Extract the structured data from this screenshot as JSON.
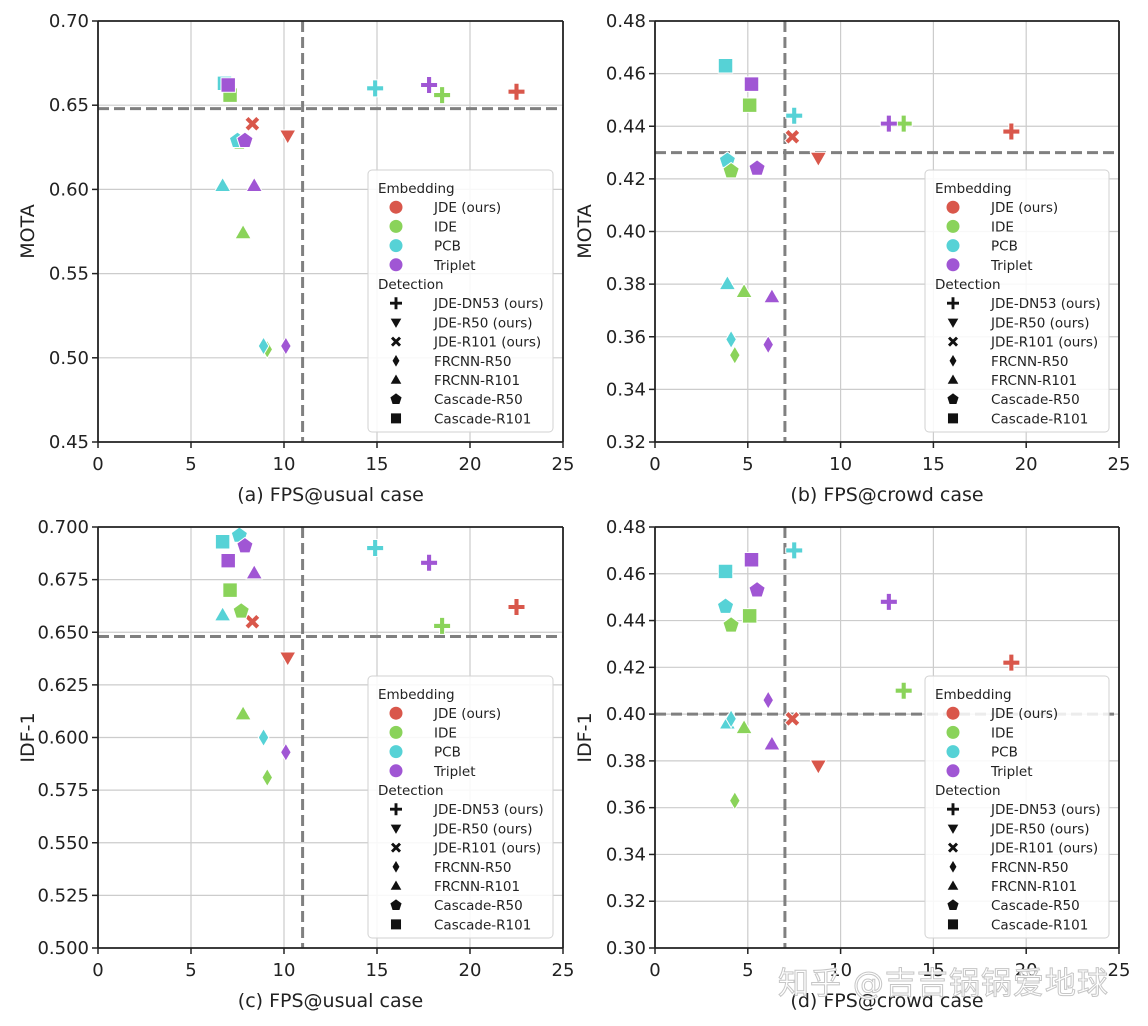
{
  "colors": {
    "embedding": {
      "JDE": "#d9574b",
      "IDE": "#8ad35a",
      "PCB": "#56d2d6",
      "Triplet": "#a056d4"
    },
    "grid": "#cccccc",
    "axes": "#222222",
    "threshold": "#808080"
  },
  "legend": {
    "embedding_title": "Embedding",
    "embedding_items": [
      {
        "key": "JDE",
        "label": "JDE (ours)"
      },
      {
        "key": "IDE",
        "label": "IDE"
      },
      {
        "key": "PCB",
        "label": "PCB"
      },
      {
        "key": "Triplet",
        "label": "Triplet"
      }
    ],
    "detection_title": "Detection",
    "detection_items": [
      {
        "marker": "plus",
        "label": "JDE-DN53 (ours)"
      },
      {
        "marker": "tri-down",
        "label": "JDE-R50 (ours)"
      },
      {
        "marker": "x",
        "label": "JDE-R101 (ours)"
      },
      {
        "marker": "diamond",
        "label": "FRCNN-R50"
      },
      {
        "marker": "tri-up",
        "label": "FRCNN-R101"
      },
      {
        "marker": "pentagon",
        "label": "Cascade-R50"
      },
      {
        "marker": "square",
        "label": "Cascade-R101"
      }
    ],
    "placement": "lower-right"
  },
  "watermark": "知乎 @吉吉锅锅爱地球",
  "chart_data": [
    {
      "type": "scatter",
      "panel": "a",
      "xlabel": "(a) FPS@usual case",
      "ylabel": "MOTA",
      "xlim": [
        0,
        25
      ],
      "ylim": [
        0.45,
        0.7
      ],
      "xticks": [
        "0",
        "5",
        "10",
        "15",
        "20",
        "25"
      ],
      "yticks": [
        "0.45",
        "0.50",
        "0.55",
        "0.60",
        "0.65",
        "0.70"
      ],
      "grid": true,
      "thresholds": {
        "x": 11.0,
        "y": 0.648
      },
      "points": [
        {
          "x": 22.5,
          "y": 0.658,
          "embedding": "JDE",
          "marker": "plus"
        },
        {
          "x": 18.5,
          "y": 0.656,
          "embedding": "IDE",
          "marker": "plus"
        },
        {
          "x": 14.9,
          "y": 0.66,
          "embedding": "PCB",
          "marker": "plus"
        },
        {
          "x": 17.8,
          "y": 0.662,
          "embedding": "Triplet",
          "marker": "plus"
        },
        {
          "x": 10.2,
          "y": 0.632,
          "embedding": "JDE",
          "marker": "tri-down"
        },
        {
          "x": 8.3,
          "y": 0.639,
          "embedding": "JDE",
          "marker": "x"
        },
        {
          "x": 6.8,
          "y": 0.663,
          "embedding": "PCB",
          "marker": "square"
        },
        {
          "x": 7.1,
          "y": 0.656,
          "embedding": "IDE",
          "marker": "square"
        },
        {
          "x": 7.0,
          "y": 0.662,
          "embedding": "Triplet",
          "marker": "square"
        },
        {
          "x": 7.6,
          "y": 0.628,
          "embedding": "IDE",
          "marker": "pentagon"
        },
        {
          "x": 7.5,
          "y": 0.629,
          "embedding": "PCB",
          "marker": "pentagon"
        },
        {
          "x": 7.9,
          "y": 0.629,
          "embedding": "Triplet",
          "marker": "pentagon"
        },
        {
          "x": 6.7,
          "y": 0.602,
          "embedding": "PCB",
          "marker": "tri-up"
        },
        {
          "x": 8.4,
          "y": 0.602,
          "embedding": "Triplet",
          "marker": "tri-up"
        },
        {
          "x": 7.8,
          "y": 0.574,
          "embedding": "IDE",
          "marker": "tri-up"
        },
        {
          "x": 9.1,
          "y": 0.505,
          "embedding": "IDE",
          "marker": "diamond"
        },
        {
          "x": 8.9,
          "y": 0.507,
          "embedding": "PCB",
          "marker": "diamond"
        },
        {
          "x": 10.1,
          "y": 0.507,
          "embedding": "Triplet",
          "marker": "diamond"
        }
      ]
    },
    {
      "type": "scatter",
      "panel": "b",
      "xlabel": "(b) FPS@crowd case",
      "ylabel": "MOTA",
      "xlim": [
        0,
        25
      ],
      "ylim": [
        0.32,
        0.48
      ],
      "xticks": [
        "0",
        "5",
        "10",
        "15",
        "20",
        "25"
      ],
      "yticks": [
        "0.32",
        "0.34",
        "0.36",
        "0.38",
        "0.40",
        "0.42",
        "0.44",
        "0.46",
        "0.48"
      ],
      "grid": true,
      "thresholds": {
        "x": 7.0,
        "y": 0.43
      },
      "points": [
        {
          "x": 19.2,
          "y": 0.438,
          "embedding": "JDE",
          "marker": "plus"
        },
        {
          "x": 13.4,
          "y": 0.441,
          "embedding": "IDE",
          "marker": "plus"
        },
        {
          "x": 7.5,
          "y": 0.444,
          "embedding": "PCB",
          "marker": "plus"
        },
        {
          "x": 12.6,
          "y": 0.441,
          "embedding": "Triplet",
          "marker": "plus"
        },
        {
          "x": 8.8,
          "y": 0.428,
          "embedding": "JDE",
          "marker": "tri-down"
        },
        {
          "x": 7.4,
          "y": 0.436,
          "embedding": "JDE",
          "marker": "x"
        },
        {
          "x": 3.8,
          "y": 0.463,
          "embedding": "PCB",
          "marker": "square"
        },
        {
          "x": 5.1,
          "y": 0.448,
          "embedding": "IDE",
          "marker": "square"
        },
        {
          "x": 5.2,
          "y": 0.456,
          "embedding": "Triplet",
          "marker": "square"
        },
        {
          "x": 3.9,
          "y": 0.427,
          "embedding": "PCB",
          "marker": "pentagon"
        },
        {
          "x": 4.1,
          "y": 0.423,
          "embedding": "IDE",
          "marker": "pentagon"
        },
        {
          "x": 5.5,
          "y": 0.424,
          "embedding": "Triplet",
          "marker": "pentagon"
        },
        {
          "x": 3.9,
          "y": 0.38,
          "embedding": "PCB",
          "marker": "tri-up"
        },
        {
          "x": 4.8,
          "y": 0.377,
          "embedding": "IDE",
          "marker": "tri-up"
        },
        {
          "x": 6.3,
          "y": 0.375,
          "embedding": "Triplet",
          "marker": "tri-up"
        },
        {
          "x": 4.1,
          "y": 0.359,
          "embedding": "PCB",
          "marker": "diamond"
        },
        {
          "x": 4.3,
          "y": 0.353,
          "embedding": "IDE",
          "marker": "diamond"
        },
        {
          "x": 6.1,
          "y": 0.357,
          "embedding": "Triplet",
          "marker": "diamond"
        }
      ]
    },
    {
      "type": "scatter",
      "panel": "c",
      "xlabel": "(c) FPS@usual case",
      "ylabel": "IDF-1",
      "xlim": [
        0,
        25
      ],
      "ylim": [
        0.5,
        0.7
      ],
      "xticks": [
        "0",
        "5",
        "10",
        "15",
        "20",
        "25"
      ],
      "yticks": [
        "0.500",
        "0.525",
        "0.550",
        "0.575",
        "0.600",
        "0.625",
        "0.650",
        "0.675",
        "0.700"
      ],
      "grid": true,
      "thresholds": {
        "x": 11.0,
        "y": 0.648
      },
      "points": [
        {
          "x": 22.5,
          "y": 0.662,
          "embedding": "JDE",
          "marker": "plus"
        },
        {
          "x": 18.5,
          "y": 0.653,
          "embedding": "IDE",
          "marker": "plus"
        },
        {
          "x": 14.9,
          "y": 0.69,
          "embedding": "PCB",
          "marker": "plus"
        },
        {
          "x": 17.8,
          "y": 0.683,
          "embedding": "Triplet",
          "marker": "plus"
        },
        {
          "x": 10.2,
          "y": 0.638,
          "embedding": "JDE",
          "marker": "tri-down"
        },
        {
          "x": 8.3,
          "y": 0.655,
          "embedding": "JDE",
          "marker": "x"
        },
        {
          "x": 6.7,
          "y": 0.693,
          "embedding": "PCB",
          "marker": "square"
        },
        {
          "x": 7.1,
          "y": 0.67,
          "embedding": "IDE",
          "marker": "square"
        },
        {
          "x": 7.0,
          "y": 0.684,
          "embedding": "Triplet",
          "marker": "square"
        },
        {
          "x": 7.6,
          "y": 0.696,
          "embedding": "PCB",
          "marker": "pentagon"
        },
        {
          "x": 7.7,
          "y": 0.66,
          "embedding": "IDE",
          "marker": "pentagon"
        },
        {
          "x": 7.9,
          "y": 0.691,
          "embedding": "Triplet",
          "marker": "pentagon"
        },
        {
          "x": 6.7,
          "y": 0.658,
          "embedding": "PCB",
          "marker": "tri-up"
        },
        {
          "x": 8.4,
          "y": 0.678,
          "embedding": "Triplet",
          "marker": "tri-up"
        },
        {
          "x": 7.8,
          "y": 0.611,
          "embedding": "IDE",
          "marker": "tri-up"
        },
        {
          "x": 8.9,
          "y": 0.6,
          "embedding": "PCB",
          "marker": "diamond"
        },
        {
          "x": 9.1,
          "y": 0.581,
          "embedding": "IDE",
          "marker": "diamond"
        },
        {
          "x": 10.1,
          "y": 0.593,
          "embedding": "Triplet",
          "marker": "diamond"
        }
      ]
    },
    {
      "type": "scatter",
      "panel": "d",
      "xlabel": "(d) FPS@crowd case",
      "ylabel": "IDF-1",
      "xlim": [
        0,
        25
      ],
      "ylim": [
        0.3,
        0.48
      ],
      "xticks": [
        "0",
        "5",
        "10",
        "15",
        "20",
        "25"
      ],
      "yticks": [
        "0.30",
        "0.32",
        "0.34",
        "0.36",
        "0.38",
        "0.40",
        "0.42",
        "0.44",
        "0.46",
        "0.48"
      ],
      "grid": true,
      "thresholds": {
        "x": 7.0,
        "y": 0.4
      },
      "points": [
        {
          "x": 19.2,
          "y": 0.422,
          "embedding": "JDE",
          "marker": "plus"
        },
        {
          "x": 13.4,
          "y": 0.41,
          "embedding": "IDE",
          "marker": "plus"
        },
        {
          "x": 7.5,
          "y": 0.47,
          "embedding": "PCB",
          "marker": "plus"
        },
        {
          "x": 12.6,
          "y": 0.448,
          "embedding": "Triplet",
          "marker": "plus"
        },
        {
          "x": 8.8,
          "y": 0.378,
          "embedding": "JDE",
          "marker": "tri-down"
        },
        {
          "x": 7.4,
          "y": 0.398,
          "embedding": "JDE",
          "marker": "x"
        },
        {
          "x": 3.8,
          "y": 0.461,
          "embedding": "PCB",
          "marker": "square"
        },
        {
          "x": 5.1,
          "y": 0.442,
          "embedding": "IDE",
          "marker": "square"
        },
        {
          "x": 5.2,
          "y": 0.466,
          "embedding": "Triplet",
          "marker": "square"
        },
        {
          "x": 3.8,
          "y": 0.446,
          "embedding": "PCB",
          "marker": "pentagon"
        },
        {
          "x": 4.1,
          "y": 0.438,
          "embedding": "IDE",
          "marker": "pentagon"
        },
        {
          "x": 5.5,
          "y": 0.453,
          "embedding": "Triplet",
          "marker": "pentagon"
        },
        {
          "x": 3.9,
          "y": 0.396,
          "embedding": "PCB",
          "marker": "tri-up"
        },
        {
          "x": 4.8,
          "y": 0.394,
          "embedding": "IDE",
          "marker": "tri-up"
        },
        {
          "x": 6.3,
          "y": 0.387,
          "embedding": "Triplet",
          "marker": "tri-up"
        },
        {
          "x": 4.1,
          "y": 0.398,
          "embedding": "PCB",
          "marker": "diamond"
        },
        {
          "x": 4.3,
          "y": 0.363,
          "embedding": "IDE",
          "marker": "diamond"
        },
        {
          "x": 6.1,
          "y": 0.406,
          "embedding": "Triplet",
          "marker": "diamond"
        }
      ]
    }
  ]
}
